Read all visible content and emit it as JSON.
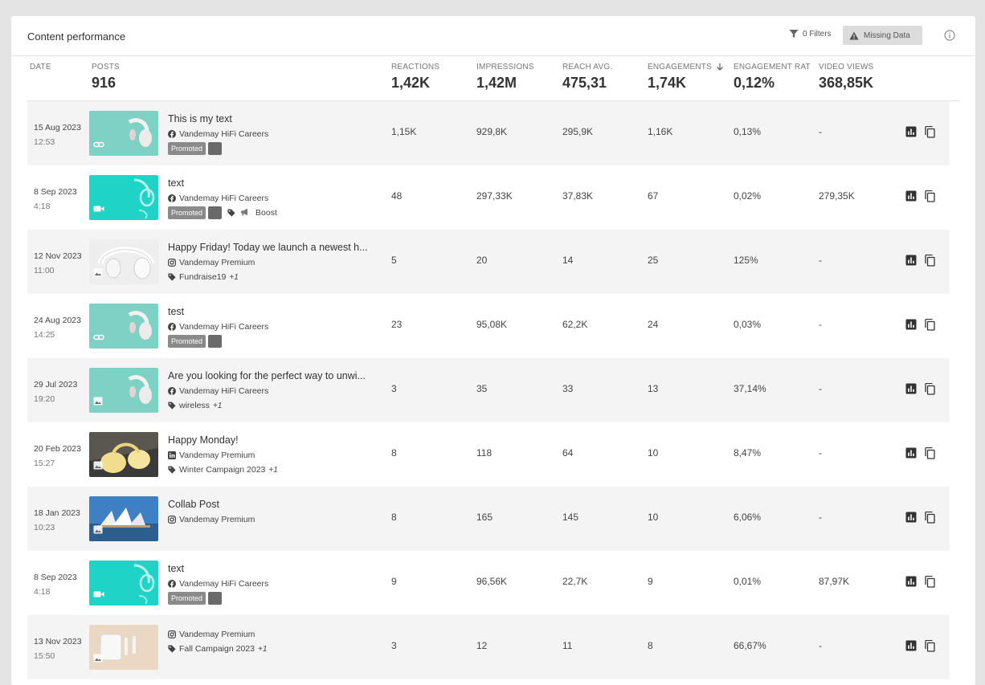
{
  "panel": {
    "title": "Content performance",
    "filters_label": "0 Filters",
    "missing_label": "Missing Data"
  },
  "columns": {
    "date": {
      "label": "DATE"
    },
    "posts": {
      "label": "POSTS",
      "value": "916"
    },
    "reactions": {
      "label": "REACTIONS",
      "value": "1,42K"
    },
    "impressions": {
      "label": "IMPRESSIONS",
      "value": "1,42M"
    },
    "reach": {
      "label": "REACH AVG.",
      "value": "475,31"
    },
    "engagements": {
      "label": "ENGAGEMENTS",
      "value": "1,74K",
      "sort": "descending"
    },
    "engagement_rate": {
      "label": "ENGAGEMENT RAT",
      "value": "0,12%"
    },
    "video_views": {
      "label": "VIDEO VIEWS",
      "value": "368,85K"
    }
  },
  "rows": [
    {
      "date": "15 Aug 2023",
      "time": "12:53",
      "title": "This is my text",
      "account": "Vandemay HiFi Careers",
      "network": "facebook",
      "thumb": "teal-headphones",
      "type_icon": "link-icon",
      "promoted": "Promoted",
      "tags": "",
      "more": "",
      "boost": "",
      "reactions": "1,15K",
      "impressions": "929,8K",
      "reach": "295,9K",
      "engagements": "1,16K",
      "rate": "0,13%",
      "video_views": "-"
    },
    {
      "date": "8 Sep 2023",
      "time": "4:18",
      "title": "text",
      "account": "Vandemay HiFi Careers",
      "network": "facebook",
      "thumb": "teal-bright",
      "type_icon": "video-icon",
      "promoted": "Promoted",
      "tags": "",
      "more": "",
      "boost": "Boost",
      "reactions": "48",
      "impressions": "297,33K",
      "reach": "37,83K",
      "engagements": "67",
      "rate": "0,02%",
      "video_views": "279,35K"
    },
    {
      "date": "12 Nov 2023",
      "time": "11:00",
      "title": "Happy Friday! Today we launch a newest h...",
      "account": "Vandemay Premium",
      "network": "instagram",
      "thumb": "white-headphones",
      "type_icon": "image-icon",
      "promoted": "",
      "tags": "Fundraise19",
      "more": "+1",
      "boost": "",
      "reactions": "5",
      "impressions": "20",
      "reach": "14",
      "engagements": "25",
      "rate": "125%",
      "video_views": "-"
    },
    {
      "date": "24 Aug 2023",
      "time": "14:25",
      "title": "test",
      "account": "Vandemay HiFi Careers",
      "network": "facebook",
      "thumb": "teal-headphones",
      "type_icon": "link-icon",
      "promoted": "Promoted",
      "tags": "",
      "more": "",
      "boost": "",
      "reactions": "23",
      "impressions": "95,08K",
      "reach": "62,2K",
      "engagements": "24",
      "rate": "0,03%",
      "video_views": "-"
    },
    {
      "date": "29 Jul 2023",
      "time": "19:20",
      "title": "Are you looking for the perfect way to unwi...",
      "account": "Vandemay HiFi Careers",
      "network": "facebook",
      "thumb": "teal-headphones",
      "type_icon": "image-icon",
      "promoted": "",
      "tags": "wireless",
      "more": "+1",
      "boost": "",
      "reactions": "3",
      "impressions": "35",
      "reach": "33",
      "engagements": "13",
      "rate": "37,14%",
      "video_views": "-"
    },
    {
      "date": "20 Feb 2023",
      "time": "15:27",
      "title": "Happy Monday!",
      "account": "Vandemay Premium",
      "network": "linkedin",
      "thumb": "yellow-headphones",
      "type_icon": "image-icon",
      "promoted": "",
      "tags": "Winter Campaign 2023",
      "more": "+1",
      "boost": "",
      "reactions": "8",
      "impressions": "118",
      "reach": "64",
      "engagements": "10",
      "rate": "8,47%",
      "video_views": "-"
    },
    {
      "date": "18 Jan 2023",
      "time": "10:23",
      "title": "Collab Post",
      "account": "Vandemay Premium",
      "network": "instagram",
      "thumb": "opera-house",
      "type_icon": "image-icon",
      "promoted": "",
      "tags": "",
      "more": "",
      "boost": "",
      "reactions": "8",
      "impressions": "165",
      "reach": "145",
      "engagements": "10",
      "rate": "6,06%",
      "video_views": "-"
    },
    {
      "date": "8 Sep 2023",
      "time": "4:18",
      "title": "text",
      "account": "Vandemay HiFi Careers",
      "network": "facebook",
      "thumb": "teal-bright",
      "type_icon": "video-icon",
      "promoted": "Promoted",
      "tags": "",
      "more": "",
      "boost": "",
      "reactions": "9",
      "impressions": "96,56K",
      "reach": "22,7K",
      "engagements": "9",
      "rate": "0,01%",
      "video_views": "87,97K"
    },
    {
      "date": "13 Nov 2023",
      "time": "15:50",
      "title": "",
      "account": "Vandemay Premium",
      "network": "instagram",
      "thumb": "beige-earbuds",
      "type_icon": "image-icon",
      "promoted": "",
      "tags": "Fall Campaign 2023",
      "more": "+1",
      "boost": "",
      "reactions": "3",
      "impressions": "12",
      "reach": "11",
      "engagements": "8",
      "rate": "66,67%",
      "video_views": "-"
    }
  ]
}
